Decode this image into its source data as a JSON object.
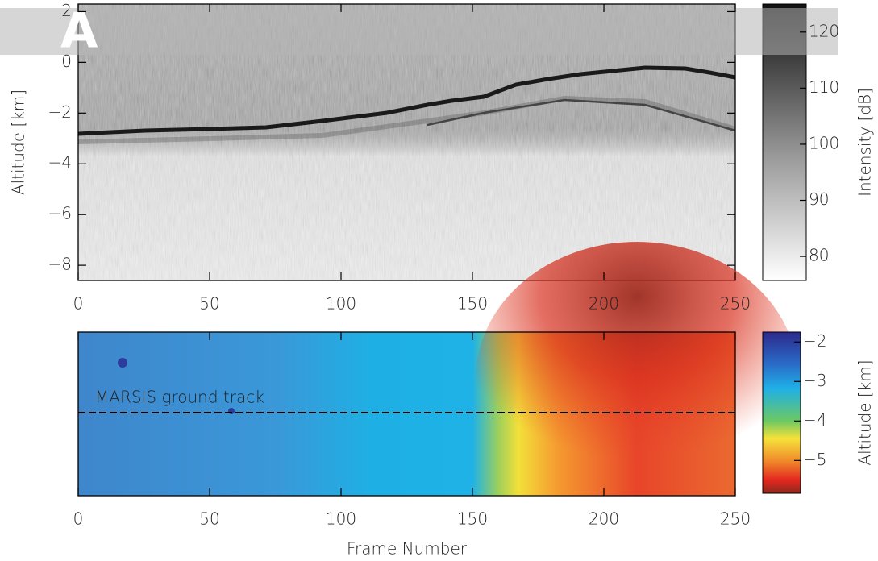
{
  "banner": "A",
  "chart_data": [
    {
      "type": "image",
      "ylabel": "Altitude [km]",
      "xlim": [
        0,
        250
      ],
      "xticks": [
        0,
        50,
        100,
        150,
        200,
        250
      ],
      "ylim": [
        -8.6,
        2.3
      ],
      "yticks": [
        {
          "value": -8,
          "label": "−8"
        },
        {
          "value": -6,
          "label": "−6"
        },
        {
          "value": -4,
          "label": "−4"
        },
        {
          "value": -2,
          "label": "−2"
        },
        0,
        2
      ],
      "colorbar": {
        "label": "Intensity [dB]",
        "lim": [
          75.7,
          125
        ],
        "ticks": [
          80,
          90,
          100,
          110,
          120
        ]
      }
    },
    {
      "type": "image",
      "xlabel": "Frame Number",
      "annotation": "MARSIS ground track",
      "xlim": [
        0,
        250
      ],
      "xticks": [
        0,
        50,
        100,
        150,
        200,
        250
      ],
      "colorbar": {
        "label": "Altitude [km]",
        "lim": [
          -5.83,
          -1.75
        ],
        "ticks": [
          {
            "value": -2,
            "label": "−2"
          },
          {
            "value": -3,
            "label": "−3"
          },
          {
            "value": -4,
            "label": "−4"
          },
          {
            "value": -5,
            "label": "−5"
          }
        ]
      }
    }
  ]
}
